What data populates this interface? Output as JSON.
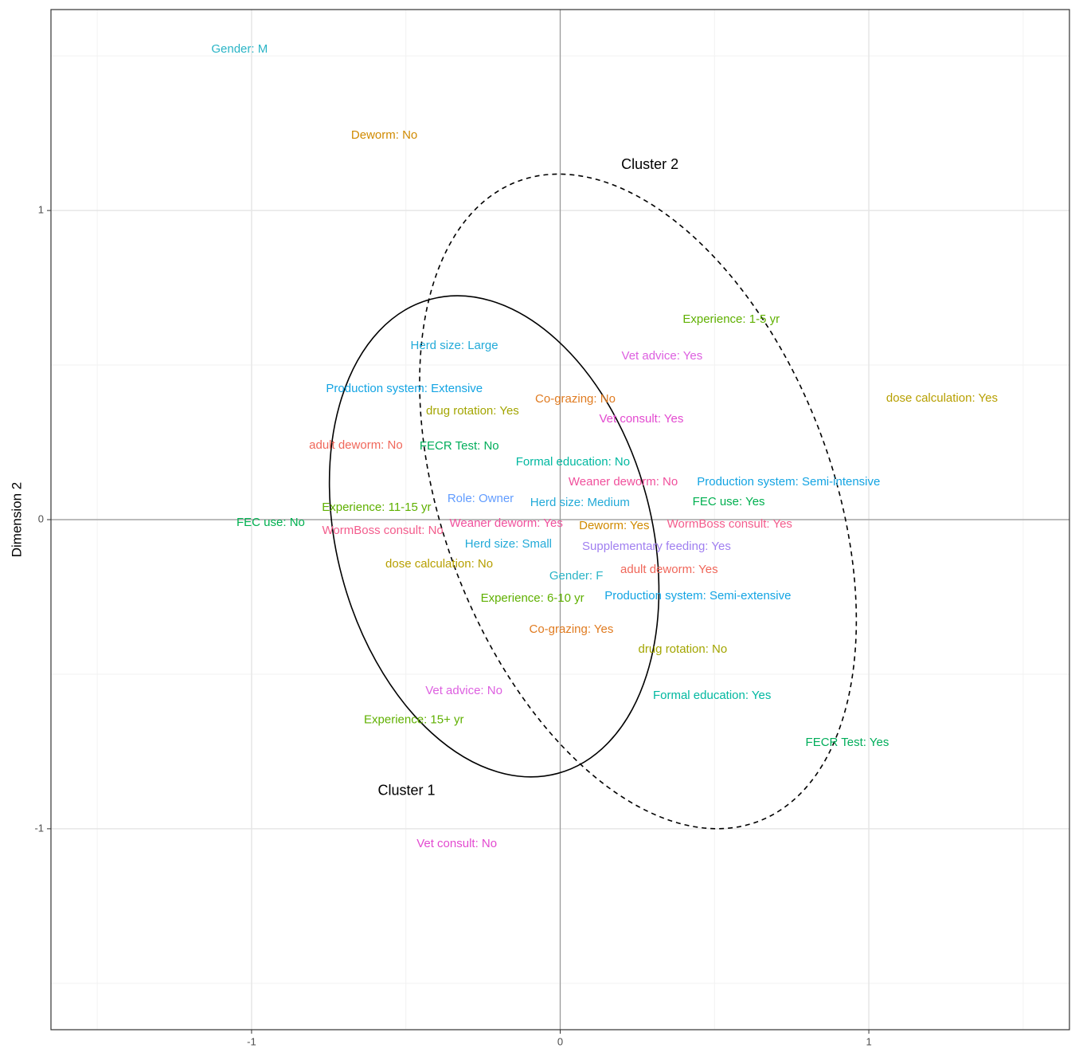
{
  "chart_data": {
    "type": "text-scatter",
    "ylabel": "Dimension 2",
    "xlim": [
      -1.65,
      1.65
    ],
    "ylim": [
      -1.65,
      1.65
    ],
    "xticks": [
      -1,
      0,
      1
    ],
    "yticks": [
      -1,
      0,
      1
    ],
    "xminor": [
      -1.5,
      -0.5,
      0.5,
      1.5
    ],
    "yminor": [
      -1.5,
      -0.5,
      0.5,
      1.5
    ],
    "grid": true,
    "hline": 0,
    "vline": 0,
    "labels": [
      "Gender: M",
      "Deworm: No",
      "Experience: 1-5 yr",
      "Vet advice: Yes",
      "dose calculation: Yes",
      "Herd size: Large",
      "Production system: Extensive",
      "Co-grazing: No",
      "drug rotation: Yes",
      "Vet consult: Yes",
      "adult deworm: No",
      "FECR Test: No",
      "Formal education: No",
      "Weaner deworm: No",
      "Production system: Semi-intensive",
      "Role: Owner",
      "Herd size: Medium",
      "FEC use: Yes",
      "Experience: 11-15 yr",
      "FEC use: No",
      "WormBoss consult: No",
      "Weaner deworm: Yes",
      "Deworm: Yes",
      "WormBoss consult: Yes",
      "Herd size: Small",
      "Supplementary feeding: Yes",
      "dose calculation: No",
      "Gender: F",
      "adult deworm: Yes",
      "Experience: 6-10 yr",
      "Production system: Semi-extensive",
      "Co-grazing: Yes",
      "drug rotation: No",
      "Vet advice: No",
      "Formal education: Yes",
      "Experience: 15+ yr",
      "FECR Test: Yes",
      "Vet consult: No"
    ],
    "x": [
      -1.039,
      -0.57,
      0.554,
      0.33,
      1.237,
      -0.343,
      -0.505,
      0.049,
      -0.284,
      0.263,
      -0.662,
      -0.327,
      0.041,
      0.204,
      0.74,
      -0.258,
      0.064,
      0.546,
      -0.595,
      -0.938,
      -0.575,
      -0.175,
      0.175,
      0.549,
      -0.168,
      0.312,
      -0.392,
      0.052,
      0.353,
      -0.09,
      0.446,
      0.036,
      0.397,
      -0.312,
      0.492,
      -0.474,
      0.93,
      -0.335
    ],
    "y": [
      1.521,
      1.242,
      0.647,
      0.528,
      0.392,
      0.562,
      0.423,
      0.389,
      0.351,
      0.325,
      0.24,
      0.237,
      0.186,
      0.121,
      0.121,
      0.067,
      0.054,
      0.057,
      0.039,
      -0.01,
      -0.036,
      -0.013,
      -0.021,
      -0.015,
      -0.08,
      -0.088,
      -0.144,
      -0.183,
      -0.162,
      -0.255,
      -0.247,
      -0.356,
      -0.42,
      -0.554,
      -0.57,
      -0.649,
      -0.722,
      -1.049
    ],
    "colors": [
      "#2ab4c6",
      "#d08a00",
      "#5fb000",
      "#dd5fe0",
      "#b79f00",
      "#22aad8",
      "#13a4e3",
      "#e07b20",
      "#a3a500",
      "#e34ad0",
      "#f0675a",
      "#00ad5a",
      "#00b8a0",
      "#f0509c",
      "#13a4e3",
      "#619cff",
      "#22aad8",
      "#00b050",
      "#5fb000",
      "#00b050",
      "#f35c8c",
      "#f0509c",
      "#d08a00",
      "#f35c8c",
      "#22aad8",
      "#a07ff0",
      "#b79f00",
      "#2ab4c6",
      "#f0675a",
      "#5fb000",
      "#13a4e3",
      "#e07b20",
      "#a3a500",
      "#dd5fe0",
      "#00b8a0",
      "#5fb000",
      "#00ad5a",
      "#e34ad0"
    ],
    "ellipses": [
      {
        "label": "Cluster 1",
        "center": [
          -0.214,
          -0.054
        ],
        "axes": [
          0.794,
          0.51
        ],
        "angle": 15,
        "dashed": false
      },
      {
        "label": "Cluster 2",
        "center": [
          0.252,
          0.059
        ],
        "axes": [
          1.106,
          0.631
        ],
        "angle": 20.6,
        "dashed": true
      }
    ]
  }
}
